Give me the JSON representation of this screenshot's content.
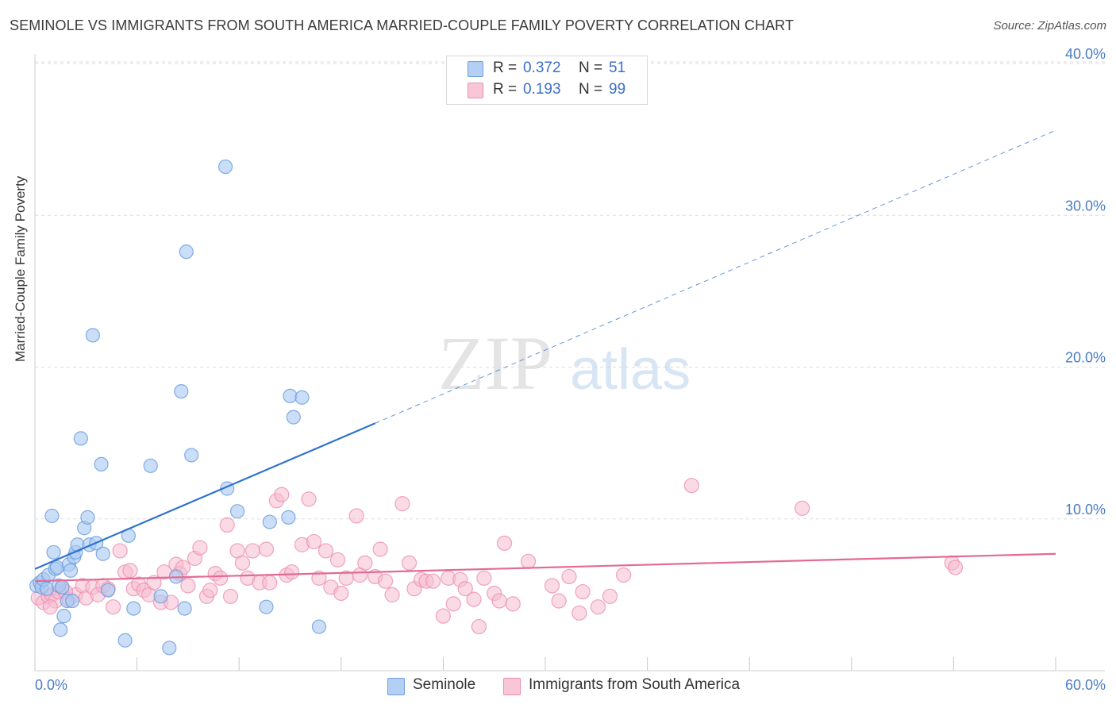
{
  "title": "SEMINOLE VS IMMIGRANTS FROM SOUTH AMERICA MARRIED-COUPLE FAMILY POVERTY CORRELATION CHART",
  "source": "Source: ZipAtlas.com",
  "watermark": {
    "zip": "ZIP",
    "atlas": "atlas"
  },
  "legend_top": {
    "rows": [
      {
        "r_label": "R =",
        "r_value": "0.372",
        "n_label": "N =",
        "n_value": "51"
      },
      {
        "r_label": "R =",
        "r_value": "0.193",
        "n_label": "N =",
        "n_value": "99"
      }
    ]
  },
  "legend_bottom": {
    "seminole": "Seminole",
    "immigrants": "Immigrants from South America"
  },
  "colors": {
    "seminole_fill": "#a9c8f2",
    "seminole_stroke": "#6f9fde",
    "seminole_line": "#2f72cf",
    "immig_fill": "#f6bccf",
    "immig_stroke": "#ec8fb0",
    "immig_line": "#e46a94",
    "grid": "#dddddd",
    "tick_label": "#4a7cc7"
  },
  "chart_data": {
    "type": "scatter",
    "title": "SEMINOLE VS IMMIGRANTS FROM SOUTH AMERICA MARRIED-COUPLE FAMILY POVERTY CORRELATION CHART",
    "xlabel": "",
    "ylabel": "Married-Couple Family Poverty",
    "xlim": [
      0,
      60
    ],
    "ylim": [
      0,
      40
    ],
    "x_tick_labels": [
      "0.0%",
      "60.0%"
    ],
    "y_ticks": [
      10,
      20,
      30,
      40
    ],
    "y_tick_labels": [
      "10.0%",
      "20.0%",
      "30.0%",
      "40.0%"
    ],
    "series": [
      {
        "name": "Seminole",
        "r": 0.372,
        "n": 51,
        "trend": {
          "x_start": 0,
          "y_start": 6.7,
          "x_solid_end": 20,
          "y_solid_end": 16.3,
          "x_end": 60,
          "y_end": 35.6
        },
        "points": [
          [
            0.1,
            5.6
          ],
          [
            0.3,
            5.8
          ],
          [
            0.4,
            5.5
          ],
          [
            0.5,
            6.0
          ],
          [
            0.7,
            5.4
          ],
          [
            0.8,
            6.3
          ],
          [
            1.0,
            10.2
          ],
          [
            1.1,
            7.8
          ],
          [
            1.2,
            6.7
          ],
          [
            1.3,
            6.8
          ],
          [
            1.4,
            5.6
          ],
          [
            1.5,
            2.7
          ],
          [
            1.7,
            3.6
          ],
          [
            1.9,
            4.6
          ],
          [
            2.0,
            7.0
          ],
          [
            2.1,
            6.6
          ],
          [
            2.3,
            7.5
          ],
          [
            2.4,
            7.8
          ],
          [
            2.5,
            8.3
          ],
          [
            2.7,
            15.3
          ],
          [
            2.9,
            9.4
          ],
          [
            3.1,
            10.1
          ],
          [
            3.2,
            8.3
          ],
          [
            3.4,
            22.1
          ],
          [
            3.6,
            8.4
          ],
          [
            3.9,
            13.6
          ],
          [
            4.0,
            7.7
          ],
          [
            4.3,
            5.3
          ],
          [
            5.3,
            2.0
          ],
          [
            5.5,
            8.9
          ],
          [
            5.8,
            4.1
          ],
          [
            6.8,
            13.5
          ],
          [
            7.4,
            4.9
          ],
          [
            7.9,
            1.5
          ],
          [
            8.3,
            6.2
          ],
          [
            8.6,
            18.4
          ],
          [
            8.8,
            4.1
          ],
          [
            8.9,
            27.6
          ],
          [
            9.2,
            14.2
          ],
          [
            11.2,
            33.2
          ],
          [
            11.3,
            12.0
          ],
          [
            11.9,
            10.5
          ],
          [
            13.6,
            4.2
          ],
          [
            13.8,
            9.8
          ],
          [
            14.9,
            10.1
          ],
          [
            15.0,
            18.1
          ],
          [
            15.2,
            16.7
          ],
          [
            15.7,
            18.0
          ],
          [
            16.7,
            2.9
          ],
          [
            2.2,
            4.6
          ],
          [
            1.6,
            5.5
          ]
        ]
      },
      {
        "name": "Immigrants from South America",
        "r": 0.193,
        "n": 99,
        "trend": {
          "x_start": 0,
          "y_start": 5.9,
          "x_end": 60,
          "y_end": 7.7
        },
        "points": [
          [
            0.2,
            4.8
          ],
          [
            0.5,
            4.5
          ],
          [
            0.8,
            4.9
          ],
          [
            1.0,
            5.0
          ],
          [
            1.2,
            4.6
          ],
          [
            1.4,
            5.2
          ],
          [
            1.6,
            5.5
          ],
          [
            2.0,
            4.7
          ],
          [
            2.4,
            5.0
          ],
          [
            2.8,
            5.6
          ],
          [
            3.0,
            4.8
          ],
          [
            3.4,
            5.5
          ],
          [
            3.7,
            5.0
          ],
          [
            4.0,
            5.6
          ],
          [
            4.3,
            5.4
          ],
          [
            4.6,
            4.2
          ],
          [
            5.0,
            7.9
          ],
          [
            5.3,
            6.5
          ],
          [
            5.6,
            6.6
          ],
          [
            5.8,
            5.4
          ],
          [
            6.1,
            5.7
          ],
          [
            6.4,
            5.3
          ],
          [
            6.7,
            5.0
          ],
          [
            7.0,
            5.8
          ],
          [
            7.4,
            4.5
          ],
          [
            7.6,
            6.5
          ],
          [
            8.0,
            4.5
          ],
          [
            8.3,
            7.0
          ],
          [
            8.5,
            6.4
          ],
          [
            8.7,
            6.8
          ],
          [
            9.0,
            5.6
          ],
          [
            9.4,
            7.4
          ],
          [
            9.7,
            8.1
          ],
          [
            10.1,
            4.9
          ],
          [
            10.3,
            5.3
          ],
          [
            10.6,
            6.4
          ],
          [
            10.9,
            6.1
          ],
          [
            11.3,
            9.6
          ],
          [
            11.5,
            4.9
          ],
          [
            11.9,
            7.9
          ],
          [
            12.2,
            7.1
          ],
          [
            12.5,
            6.1
          ],
          [
            12.8,
            7.9
          ],
          [
            13.2,
            5.8
          ],
          [
            13.6,
            8.0
          ],
          [
            13.8,
            5.8
          ],
          [
            14.2,
            11.2
          ],
          [
            14.5,
            11.6
          ],
          [
            14.8,
            6.3
          ],
          [
            15.1,
            6.5
          ],
          [
            15.7,
            8.3
          ],
          [
            16.1,
            11.3
          ],
          [
            16.4,
            8.5
          ],
          [
            16.7,
            6.1
          ],
          [
            17.1,
            7.9
          ],
          [
            17.4,
            5.5
          ],
          [
            17.8,
            7.3
          ],
          [
            18.0,
            5.1
          ],
          [
            18.3,
            6.1
          ],
          [
            18.9,
            10.2
          ],
          [
            19.1,
            6.3
          ],
          [
            19.4,
            7.1
          ],
          [
            20.0,
            6.2
          ],
          [
            20.3,
            8.0
          ],
          [
            20.6,
            5.9
          ],
          [
            21.0,
            5.0
          ],
          [
            21.6,
            11.0
          ],
          [
            22.0,
            7.1
          ],
          [
            22.3,
            5.4
          ],
          [
            22.7,
            6.0
          ],
          [
            23.0,
            5.9
          ],
          [
            23.4,
            5.9
          ],
          [
            24.0,
            3.6
          ],
          [
            24.3,
            6.1
          ],
          [
            24.6,
            4.4
          ],
          [
            25.0,
            6.0
          ],
          [
            25.3,
            5.4
          ],
          [
            25.8,
            4.7
          ],
          [
            26.1,
            2.9
          ],
          [
            26.4,
            6.1
          ],
          [
            27.0,
            5.1
          ],
          [
            27.3,
            4.6
          ],
          [
            27.6,
            8.4
          ],
          [
            28.1,
            4.4
          ],
          [
            29.0,
            7.2
          ],
          [
            30.4,
            5.6
          ],
          [
            30.8,
            4.6
          ],
          [
            31.4,
            6.2
          ],
          [
            32.0,
            3.8
          ],
          [
            32.2,
            5.2
          ],
          [
            33.1,
            4.2
          ],
          [
            33.8,
            4.9
          ],
          [
            34.6,
            6.3
          ],
          [
            38.6,
            12.2
          ],
          [
            45.1,
            10.7
          ],
          [
            53.9,
            7.1
          ],
          [
            54.1,
            6.8
          ],
          [
            1.8,
            5.2
          ],
          [
            0.9,
            4.2
          ]
        ]
      }
    ]
  }
}
